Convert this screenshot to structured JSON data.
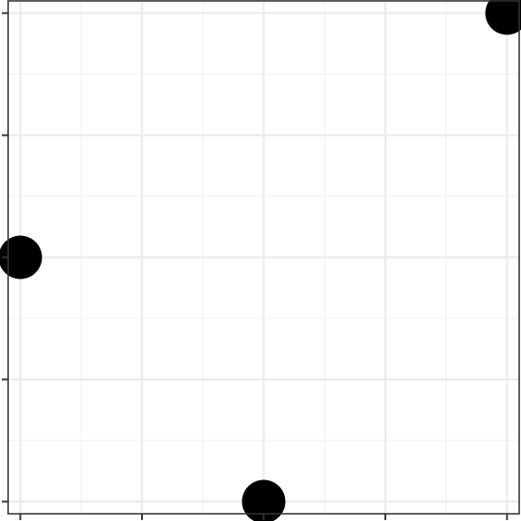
{
  "chart_data": {
    "type": "scatter",
    "x": [
      1,
      3,
      5
    ],
    "y": [
      3,
      1,
      5
    ],
    "xlim": [
      0.9,
      5.1
    ],
    "ylim": [
      0.9,
      5.1
    ],
    "x_ticks": [
      1,
      2,
      3,
      4,
      5
    ],
    "y_ticks": [
      1,
      2,
      3,
      4,
      5
    ],
    "grid": true,
    "title": "",
    "xlabel": "",
    "ylabel": "",
    "colors": {
      "background": "#ffffff",
      "panel_border": "#333333",
      "grid_major": "#ebebeb",
      "grid_minor": "#f2f2f2",
      "point": "#000000",
      "tick": "#333333"
    }
  }
}
